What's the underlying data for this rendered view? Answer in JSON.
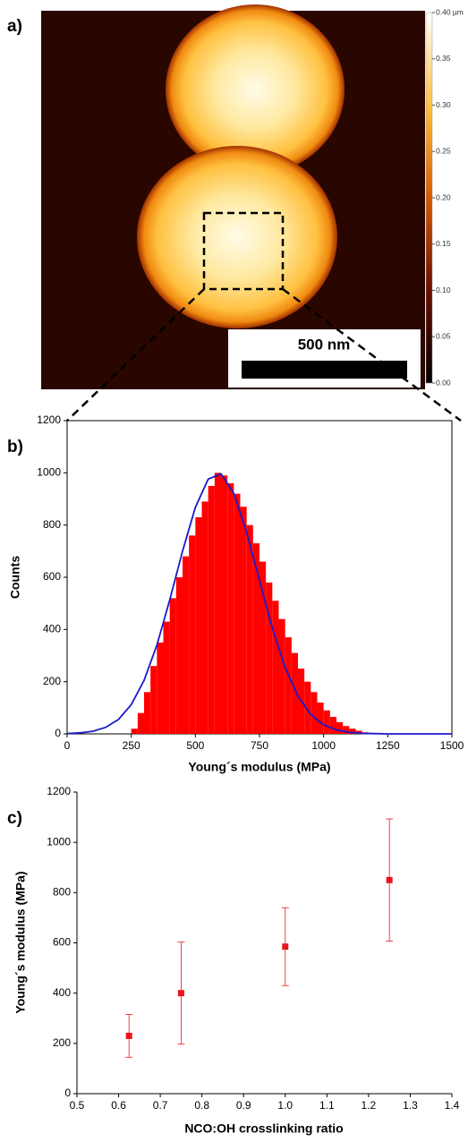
{
  "chart_data": [
    {
      "type": "image",
      "panel_label": "a)",
      "scale_bar": "500 nm",
      "ylim": [
        0,
        0.4
      ],
      "yticks": [
        {
          "value": 0,
          "label": "0.00"
        },
        {
          "value": 0.05,
          "label": "0.05"
        },
        {
          "value": 0.1,
          "label": "0.10"
        },
        {
          "value": 0.15,
          "label": "0.15"
        },
        {
          "value": 0.2,
          "label": "0.20"
        },
        {
          "value": 0.25,
          "label": "0.25"
        },
        {
          "value": 0.3,
          "label": "0.30"
        },
        {
          "value": 0.35,
          "label": "0.35"
        },
        {
          "value": 0.4,
          "label": "0.40 µm"
        }
      ]
    },
    {
      "type": "histogram",
      "panel_label": "b)",
      "xlabel": "Young´s modulus (MPa)",
      "ylabel": "Counts",
      "color": "#ff0000",
      "bins": [
        250,
        275,
        300,
        325,
        350,
        375,
        400,
        425,
        450,
        475,
        500,
        525,
        550,
        575,
        600,
        625,
        650,
        675,
        700,
        725,
        750,
        775,
        800,
        825,
        850,
        875,
        900,
        925,
        950,
        975,
        1000,
        1025,
        1050,
        1075,
        1100,
        1125,
        1150,
        1175
      ],
      "values": [
        20,
        80,
        160,
        260,
        350,
        430,
        520,
        600,
        680,
        760,
        830,
        890,
        950,
        1000,
        990,
        960,
        920,
        870,
        800,
        730,
        660,
        580,
        510,
        440,
        370,
        310,
        250,
        200,
        160,
        120,
        90,
        65,
        45,
        30,
        20,
        12,
        6
      ],
      "fit": {
        "color": "#1a1acc",
        "x": [
          0,
          50,
          100,
          150,
          200,
          250,
          300,
          350,
          400,
          450,
          500,
          550,
          600,
          650,
          700,
          750,
          800,
          850,
          900,
          950,
          1000,
          1050,
          1100,
          1150,
          1200,
          1250,
          1300,
          1350,
          1400,
          1450,
          1500
        ],
        "values": [
          1,
          4,
          10,
          25,
          55,
          112,
          205,
          340,
          513,
          700,
          868,
          976,
          996,
          921,
          772,
          588,
          405,
          254,
          144,
          74,
          35,
          15,
          6,
          2,
          1,
          0,
          0,
          0,
          0,
          0,
          0
        ]
      },
      "xlim": [
        0,
        1500
      ],
      "xticks": [
        0,
        250,
        500,
        750,
        1000,
        1250,
        1500
      ],
      "ylim": [
        0,
        1200
      ],
      "yticks": [
        0,
        200,
        400,
        600,
        800,
        1000,
        1200
      ]
    },
    {
      "type": "scatter",
      "panel_label": "c)",
      "xlabel": "NCO:OH crosslinking ratio",
      "ylabel": "Young´s modulus (MPa)",
      "color": "#e8141c",
      "x": [
        0.625,
        0.75,
        1.0,
        1.25
      ],
      "values": [
        230,
        400,
        585,
        850
      ],
      "errors": [
        85,
        203,
        155,
        243
      ],
      "xlim": [
        0.5,
        1.4
      ],
      "xticks": [
        0.5,
        0.6,
        0.7,
        0.8,
        0.9,
        {
          "value": 1.0,
          "label": "1.0"
        },
        1.1,
        1.2,
        1.3,
        1.4
      ],
      "ylim": [
        0,
        1200
      ],
      "yticks": [
        0,
        200,
        400,
        600,
        800,
        1000,
        1200
      ]
    }
  ]
}
